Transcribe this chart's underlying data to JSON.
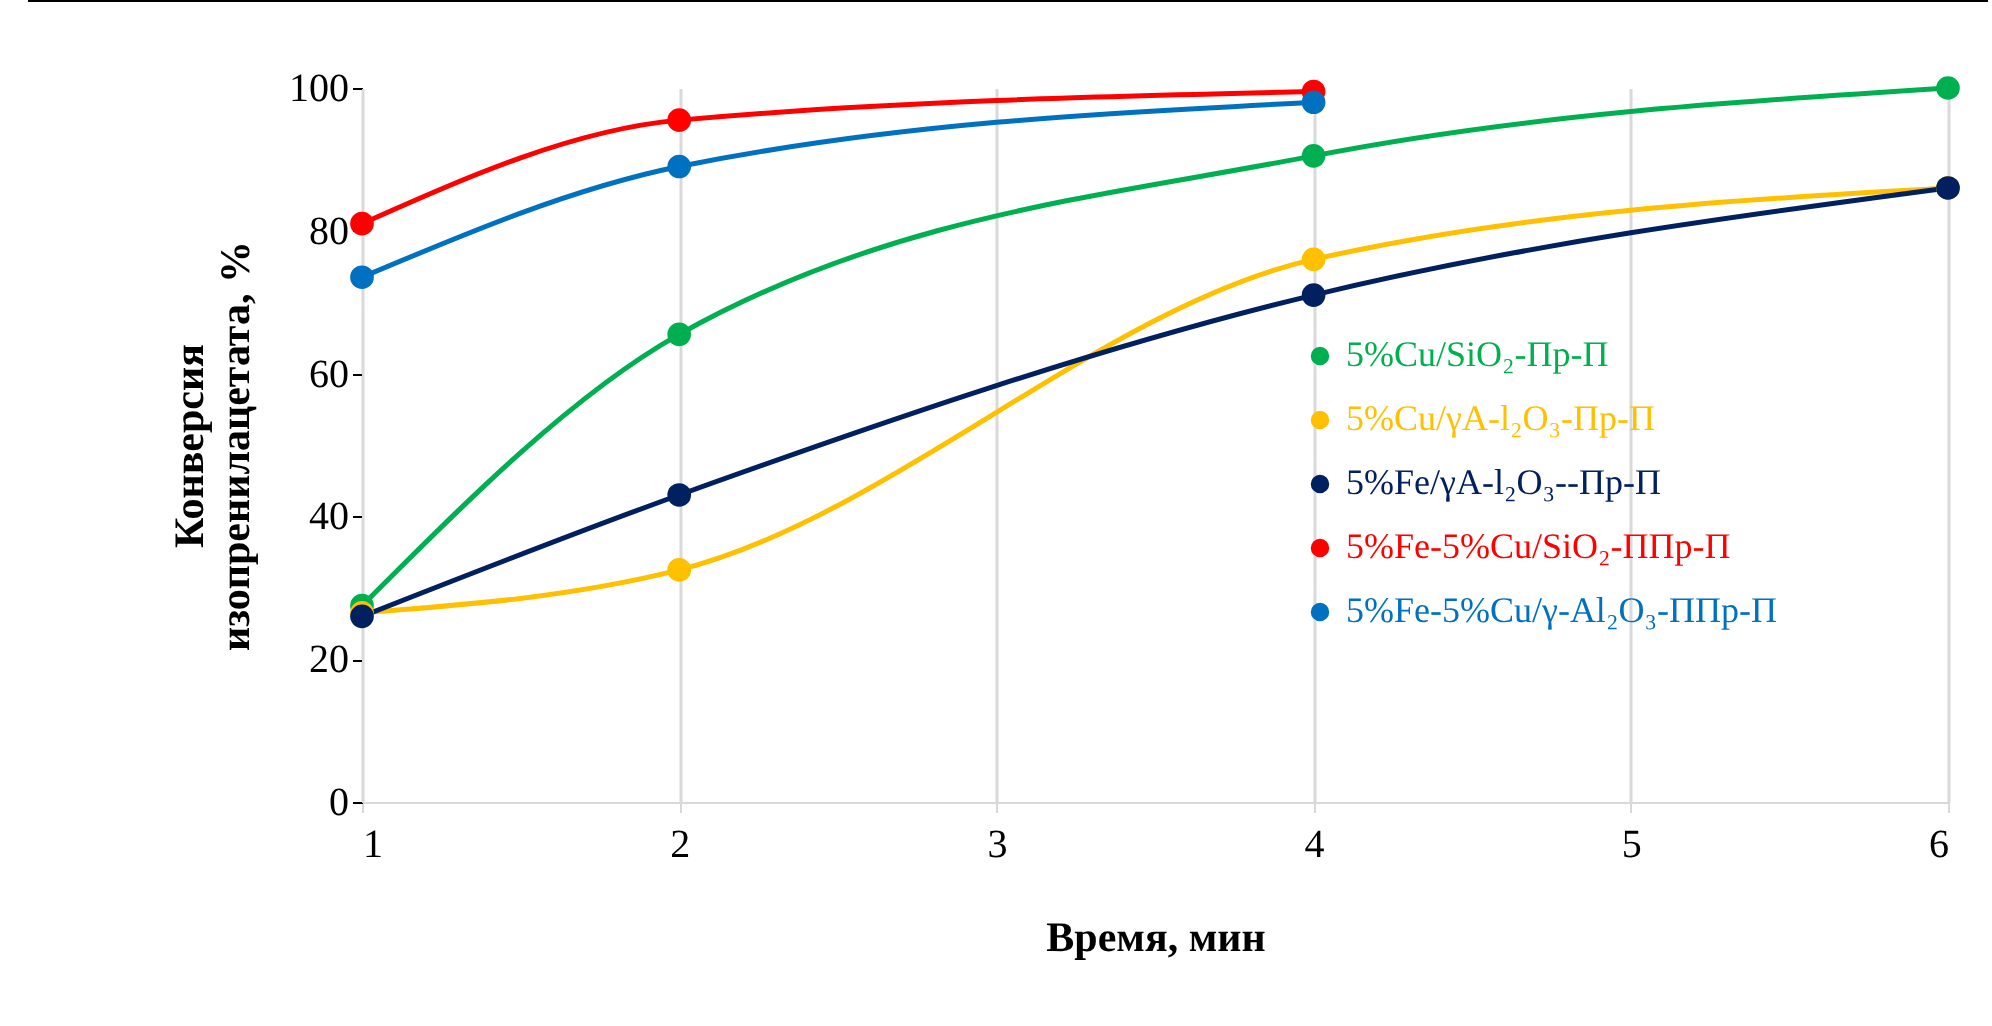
{
  "chart_data": {
    "type": "line",
    "xlabel": "Время, мин",
    "ylabel": "Конверсия\nизопренилацетата, %",
    "xlim": [
      1,
      6
    ],
    "xticks": [
      1,
      2,
      3,
      4,
      5,
      6
    ],
    "ylim": [
      0,
      100
    ],
    "yticks": [
      0,
      20,
      40,
      60,
      80,
      100
    ],
    "grid": "x",
    "legend": "right",
    "marker": "circle",
    "line_style": "solid",
    "series": [
      {
        "name": "5%Cu/SiO₂-Пр-П",
        "color": "#00b050",
        "x": [
          1,
          2,
          4,
          6
        ],
        "values": [
          27.5,
          65.5,
          90.5,
          100
        ]
      },
      {
        "name": "5%Cu/γA-l₂O₃-Пр-П",
        "color": "#ffc000",
        "x": [
          1,
          2,
          4,
          6
        ],
        "values": [
          26.5,
          32.5,
          76,
          86
        ]
      },
      {
        "name": "5%Fe/γA-l₂O₃--Пр-П",
        "color": "#002060",
        "x": [
          1,
          2,
          4,
          6
        ],
        "values": [
          26,
          43,
          71,
          86
        ]
      },
      {
        "name": "5%Fe-5%Cu/SiO₂-ППр-П",
        "color": "#ff0000",
        "x": [
          1,
          2,
          4
        ],
        "values": [
          81,
          95.5,
          99.5
        ]
      },
      {
        "name": "5%Fe-5%Cu/γ-Al₂O₃-ППр-П",
        "color": "#0070c0",
        "x": [
          1,
          2,
          4
        ],
        "values": [
          73.5,
          89,
          98
        ]
      }
    ]
  }
}
